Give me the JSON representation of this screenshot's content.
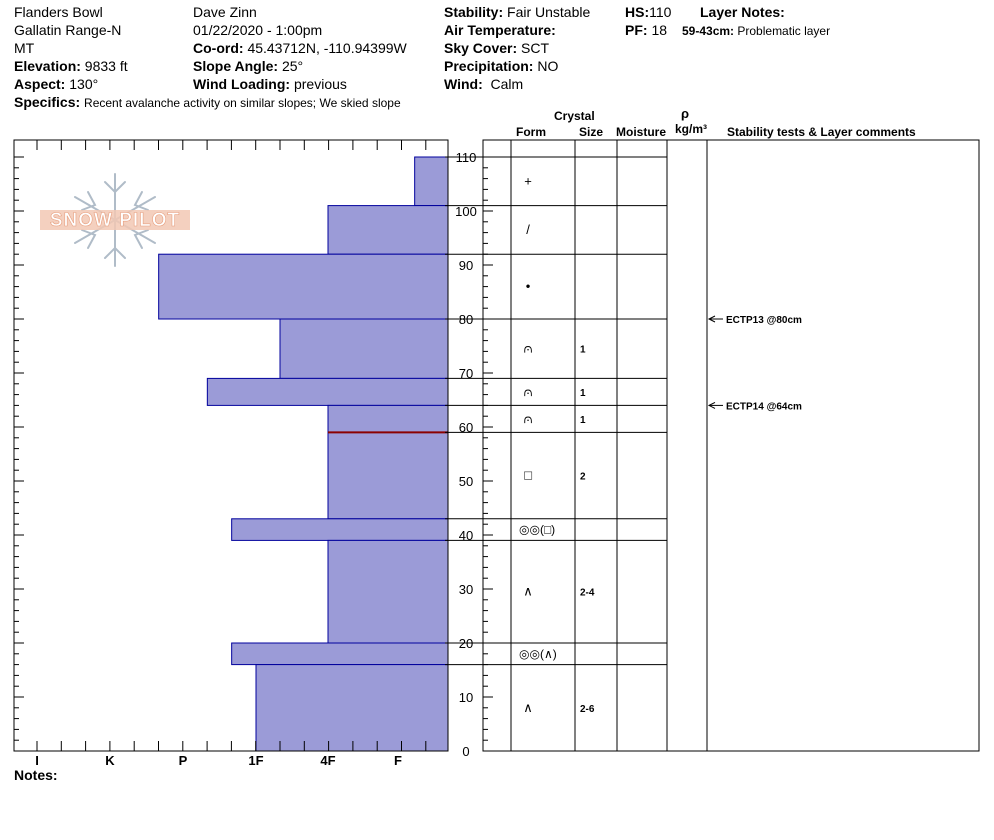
{
  "header": {
    "location": "Flanders Bowl",
    "range": "Gallatin Range-N",
    "state": "MT",
    "elevation_label": "Elevation:",
    "elevation_value": "9833 ft",
    "aspect_label": "Aspect:",
    "aspect_value": "130°",
    "observer": "Dave Zinn",
    "datetime": "01/22/2020 - 1:00pm",
    "coord_label": "Co-ord:",
    "coord_value": "45.43712N, -110.94399W",
    "slope_label": "Slope Angle:",
    "slope_value": "25°",
    "wind_loading_label": "Wind Loading:",
    "wind_loading_value": "previous",
    "stability_label": "Stability:",
    "stability_value": "Fair Unstable",
    "air_temp_label": "Air Temperature:",
    "sky_label": "Sky Cover:",
    "sky_value": "SCT",
    "precip_label": "Precipitation:",
    "precip_value": "NO",
    "wind_label": "Wind:",
    "wind_value": "Calm",
    "hs_label": "HS:",
    "hs_value": "110",
    "pf_label": "PF:",
    "pf_value": "18",
    "layer_notes_label": "Layer Notes:",
    "layer_note_range": "59-43cm:",
    "layer_note_text": "Problematic layer",
    "specifics_label": "Specifics:",
    "specifics_value": "Recent avalanche activity on similar slopes; We skied slope"
  },
  "columns": {
    "crystal": "Crystal",
    "form": "Form",
    "size": "Size",
    "moisture": "Moisture",
    "rho": "ρ",
    "density_unit": "kg/m³",
    "stability": "Stability tests & Layer comments"
  },
  "logo_text": "SNOW PILOT",
  "notes_label": "Notes:",
  "colors": {
    "hardness_fill": "#9b9bd7",
    "hardness_stroke": "#00009c",
    "critical_line": "#8b0000"
  },
  "chart_data": {
    "type": "bar",
    "orientation": "horizontal",
    "y_axis": {
      "range": [
        0,
        110
      ],
      "ticks": [
        0,
        10,
        20,
        30,
        40,
        50,
        60,
        70,
        80,
        90,
        100,
        110
      ]
    },
    "x_axis": {
      "categories": [
        "I",
        "K",
        "P",
        "1F",
        "4F",
        "F"
      ],
      "direction": "reversed"
    },
    "hardness_layers": [
      {
        "top": 110,
        "bottom": 101,
        "hardness": "F+"
      },
      {
        "top": 101,
        "bottom": 92,
        "hardness": "4F"
      },
      {
        "top": 92,
        "bottom": 80,
        "hardness": "P-"
      },
      {
        "top": 80,
        "bottom": 69,
        "hardness": "1F+"
      },
      {
        "top": 69,
        "bottom": 64,
        "hardness": "P+"
      },
      {
        "top": 64,
        "bottom": 43,
        "hardness": "4F"
      },
      {
        "top": 43,
        "bottom": 39,
        "hardness": "1F-"
      },
      {
        "top": 39,
        "bottom": 20,
        "hardness": "4F"
      },
      {
        "top": 20,
        "bottom": 16,
        "hardness": "1F-"
      },
      {
        "top": 16,
        "bottom": 0,
        "hardness": "1F"
      }
    ],
    "critical_layer_height": 59,
    "layers": [
      {
        "top": 110,
        "bottom": 101,
        "form": "+",
        "size": ""
      },
      {
        "top": 101,
        "bottom": 92,
        "form": "/",
        "size": ""
      },
      {
        "top": 92,
        "bottom": 80,
        "form": "•",
        "size": ""
      },
      {
        "top": 80,
        "bottom": 69,
        "form": "⩀",
        "size": "1"
      },
      {
        "top": 69,
        "bottom": 64,
        "form": "⩀",
        "size": "1"
      },
      {
        "top": 64,
        "bottom": 59,
        "form": "⩀",
        "size": "1"
      },
      {
        "top": 59,
        "bottom": 43,
        "form": "□",
        "size": "2"
      },
      {
        "top": 43,
        "bottom": 39,
        "form": "◎◎(□)",
        "size": ""
      },
      {
        "top": 39,
        "bottom": 20,
        "form": "∧",
        "size": "2-4"
      },
      {
        "top": 20,
        "bottom": 16,
        "form": "◎◎(∧)",
        "size": ""
      },
      {
        "top": 16,
        "bottom": 0,
        "form": "∧",
        "size": "2-6"
      }
    ],
    "stability_tests": [
      {
        "height": 80,
        "label": "ECTP13 @80cm"
      },
      {
        "height": 64,
        "label": "ECTP14 @64cm"
      }
    ]
  }
}
